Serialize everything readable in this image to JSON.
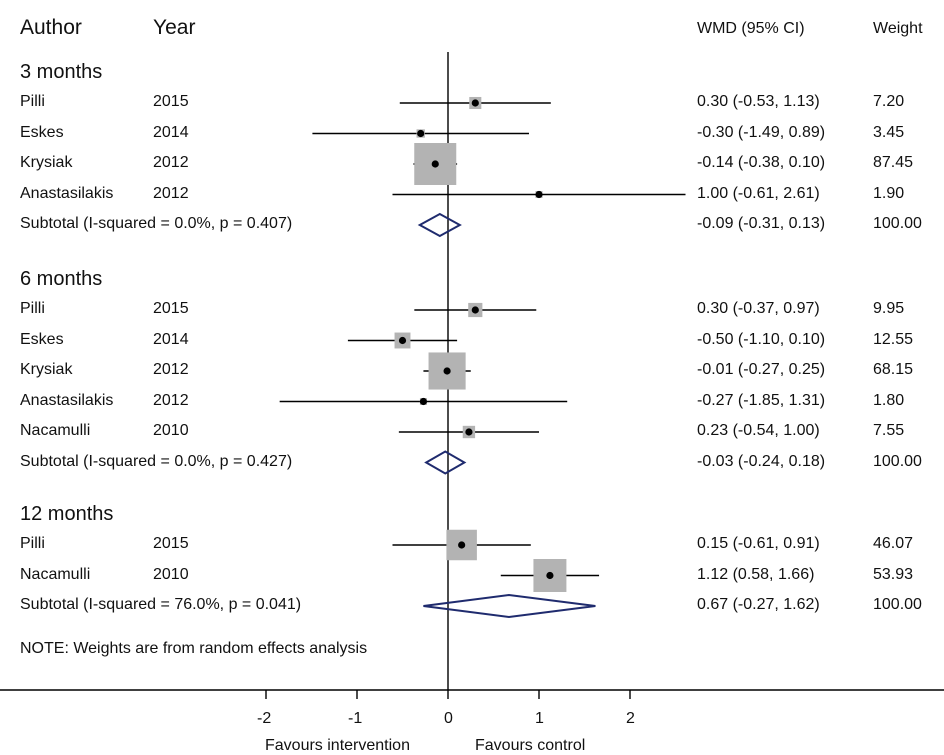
{
  "header": {
    "author": "Author",
    "year": "Year",
    "wmd": "WMD (95% CI)",
    "weight": "Weight"
  },
  "note": "NOTE: Weights are from random effects analysis",
  "axis": {
    "ticks": [
      "-2",
      "-1",
      "0",
      "1",
      "2"
    ],
    "favours_left": "Favours intervention",
    "favours_right": "Favours control"
  },
  "colors": {
    "box": "#b3b3b3",
    "diamond": "#1f2b6e",
    "line": "#000000"
  },
  "chart_data": {
    "type": "forest",
    "xlim": [
      -2,
      2
    ],
    "null_line": 0,
    "groups": [
      {
        "name": "3 months",
        "studies": [
          {
            "author": "Pilli",
            "year": "2015",
            "est": 0.3,
            "lo": -0.53,
            "hi": 1.13,
            "ci_text": "0.30 (-0.53, 1.13)",
            "weight": 7.2,
            "weight_text": "7.20"
          },
          {
            "author": "Eskes",
            "year": "2014",
            "est": -0.3,
            "lo": -1.49,
            "hi": 0.89,
            "ci_text": "-0.30 (-1.49, 0.89)",
            "weight": 3.45,
            "weight_text": "3.45"
          },
          {
            "author": "Krysiak",
            "year": "2012",
            "est": -0.14,
            "lo": -0.38,
            "hi": 0.1,
            "ci_text": "-0.14 (-0.38, 0.10)",
            "weight": 87.45,
            "weight_text": "87.45"
          },
          {
            "author": "Anastasilakis",
            "year": "2012",
            "est": 1.0,
            "lo": -0.61,
            "hi": 2.61,
            "ci_text": "1.00 (-0.61, 2.61)",
            "weight": 1.9,
            "weight_text": "1.90"
          }
        ],
        "subtotal": {
          "label": "Subtotal  (I-squared = 0.0%, p = 0.407)",
          "est": -0.09,
          "lo": -0.31,
          "hi": 0.13,
          "ci_text": "-0.09 (-0.31, 0.13)",
          "weight_text": "100.00"
        }
      },
      {
        "name": "6 months",
        "studies": [
          {
            "author": "Pilli",
            "year": "2015",
            "est": 0.3,
            "lo": -0.37,
            "hi": 0.97,
            "ci_text": "0.30 (-0.37, 0.97)",
            "weight": 9.95,
            "weight_text": "9.95"
          },
          {
            "author": "Eskes",
            "year": "2014",
            "est": -0.5,
            "lo": -1.1,
            "hi": 0.1,
            "ci_text": "-0.50 (-1.10, 0.10)",
            "weight": 12.55,
            "weight_text": "12.55"
          },
          {
            "author": "Krysiak",
            "year": "2012",
            "est": -0.01,
            "lo": -0.27,
            "hi": 0.25,
            "ci_text": "-0.01 (-0.27, 0.25)",
            "weight": 68.15,
            "weight_text": "68.15"
          },
          {
            "author": "Anastasilakis",
            "year": "2012",
            "est": -0.27,
            "lo": -1.85,
            "hi": 1.31,
            "ci_text": "-0.27 (-1.85, 1.31)",
            "weight": 1.8,
            "weight_text": "1.80"
          },
          {
            "author": "Nacamulli",
            "year": "2010",
            "est": 0.23,
            "lo": -0.54,
            "hi": 1.0,
            "ci_text": "0.23 (-0.54, 1.00)",
            "weight": 7.55,
            "weight_text": "7.55"
          }
        ],
        "subtotal": {
          "label": "Subtotal  (I-squared = 0.0%, p = 0.427)",
          "est": -0.03,
          "lo": -0.24,
          "hi": 0.18,
          "ci_text": "-0.03 (-0.24, 0.18)",
          "weight_text": "100.00"
        }
      },
      {
        "name": "12 months",
        "studies": [
          {
            "author": "Pilli",
            "year": "2015",
            "est": 0.15,
            "lo": -0.61,
            "hi": 0.91,
            "ci_text": "0.15 (-0.61, 0.91)",
            "weight": 46.07,
            "weight_text": "46.07"
          },
          {
            "author": "Nacamulli",
            "year": "2010",
            "est": 1.12,
            "lo": 0.58,
            "hi": 1.66,
            "ci_text": "1.12 (0.58, 1.66)",
            "weight": 53.93,
            "weight_text": "53.93"
          }
        ],
        "subtotal": {
          "label": "Subtotal  (I-squared = 76.0%, p = 0.041)",
          "est": 0.67,
          "lo": -0.27,
          "hi": 1.62,
          "ci_text": "0.67 (-0.27, 1.62)",
          "weight_text": "100.00"
        }
      }
    ]
  }
}
